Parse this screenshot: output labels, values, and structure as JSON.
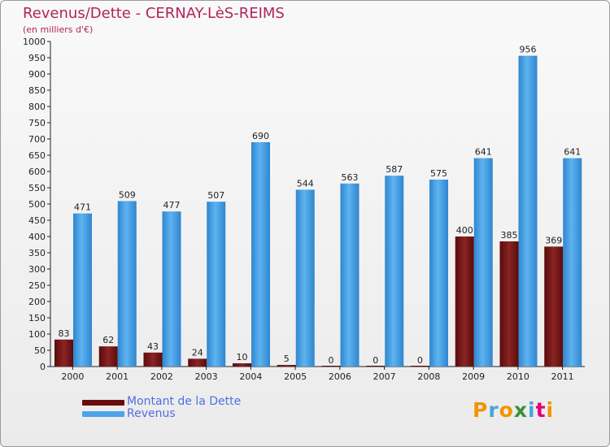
{
  "header": {
    "title": "Revenus/Dette - CERNAY-LèS-REIMS",
    "subtitle": "(en milliers d'€)"
  },
  "chart_data": {
    "type": "bar",
    "title": "Revenus/Dette - CERNAY-LèS-REIMS",
    "subtitle": "(en milliers d'€)",
    "xlabel": "",
    "ylabel": "",
    "categories": [
      "2000",
      "2001",
      "2002",
      "2003",
      "2004",
      "2005",
      "2006",
      "2007",
      "2008",
      "2009",
      "2010",
      "2011"
    ],
    "series": [
      {
        "name": "Montant de la Dette",
        "color": "#7a1414",
        "values": [
          83,
          62,
          43,
          24,
          10,
          5,
          0,
          0,
          0,
          400,
          385,
          369
        ]
      },
      {
        "name": "Revenus",
        "color": "#4ea3e8",
        "values": [
          471,
          509,
          477,
          507,
          690,
          544,
          563,
          587,
          575,
          641,
          956,
          641
        ]
      }
    ],
    "ylim": [
      0,
      1000
    ],
    "yticks": [
      0,
      50,
      100,
      150,
      200,
      250,
      300,
      350,
      400,
      450,
      500,
      550,
      600,
      650,
      700,
      750,
      800,
      850,
      900,
      950,
      1000
    ],
    "grid": false,
    "legend_position": "bottom-left"
  },
  "legend": {
    "debt_label": "Montant de la Dette",
    "revenue_label": "Revenus",
    "debt_color": "#6b0c0c",
    "revenue_color": "#4ea3e8"
  },
  "logo": {
    "letters": [
      "P",
      "r",
      "o",
      "x",
      "i",
      "t",
      "i"
    ],
    "colors": [
      "#f29400",
      "#4aa3df",
      "#f29400",
      "#3a8f3a",
      "#4aa3df",
      "#e2007a",
      "#f29400"
    ]
  }
}
